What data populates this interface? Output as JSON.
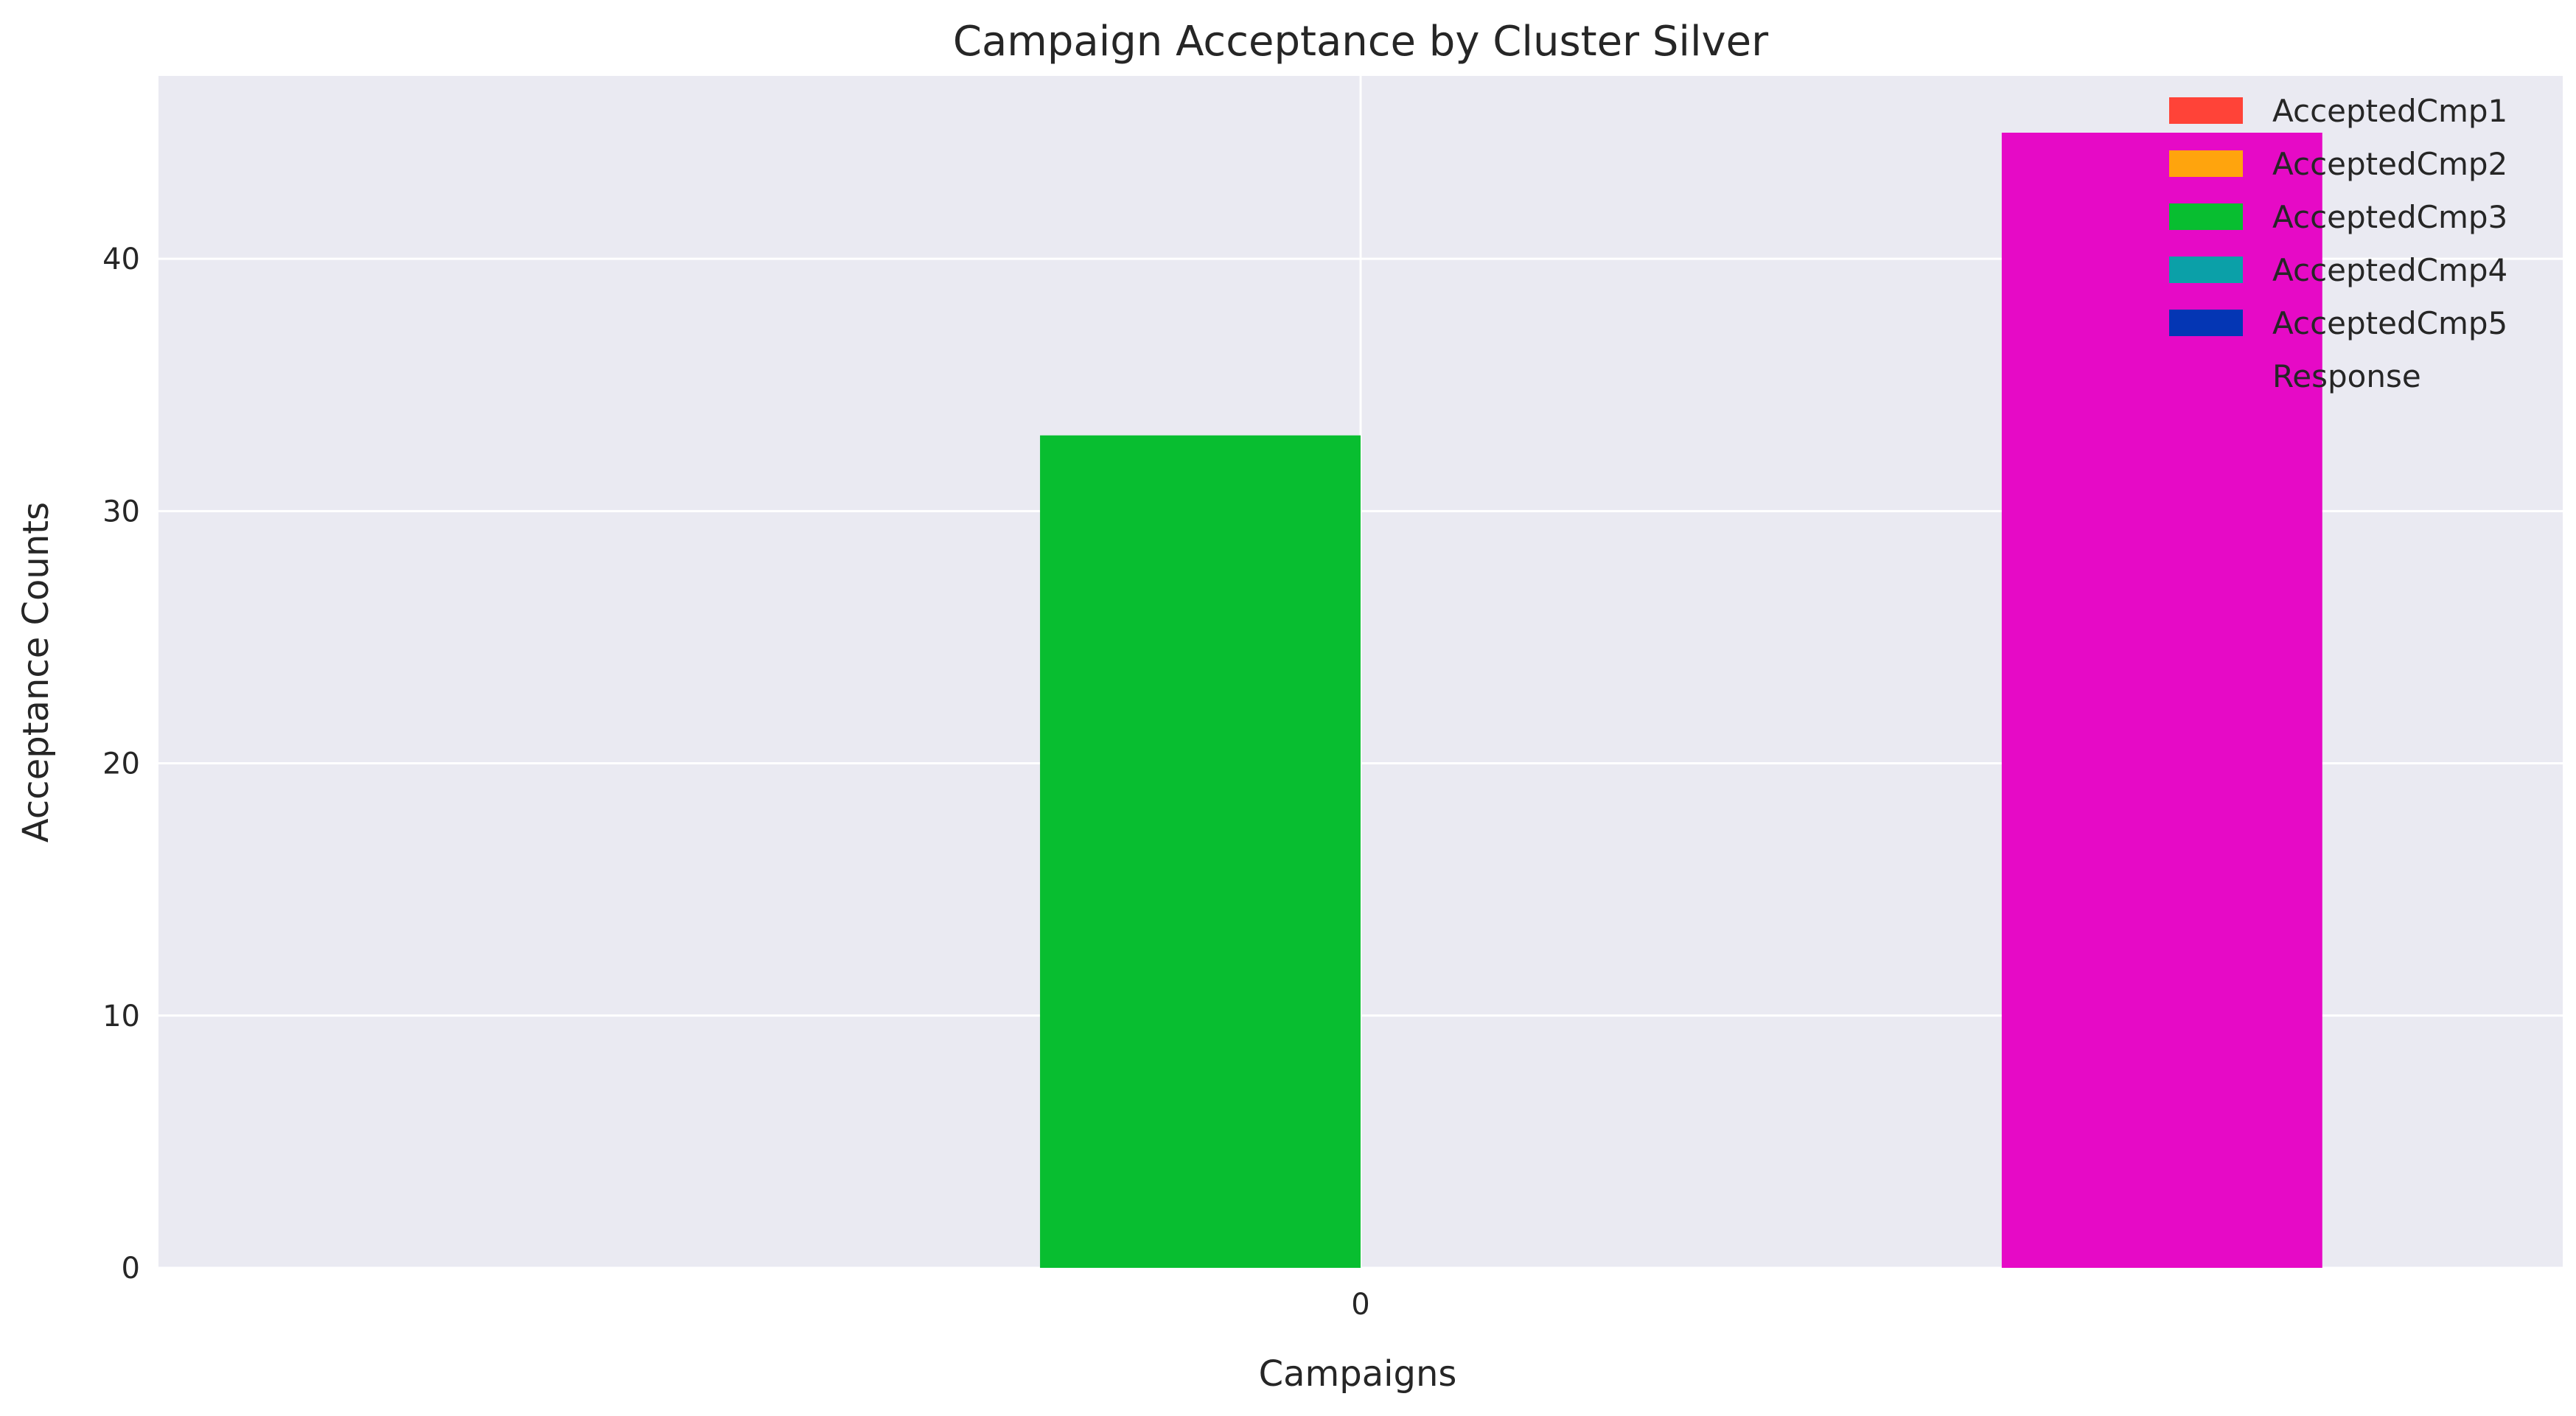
{
  "chart_data": {
    "type": "bar",
    "title": "Campaign Acceptance by Cluster Silver",
    "xlabel": "Campaigns",
    "ylabel": "Acceptance Counts",
    "categories": [
      "0"
    ],
    "ylim": [
      0,
      47.25
    ],
    "yticks": [
      0,
      10,
      20,
      30,
      40
    ],
    "grid": true,
    "legend_position": "top-right",
    "series": [
      {
        "name": "AcceptedCmp1",
        "values": [
          0
        ],
        "color": "#ff4338"
      },
      {
        "name": "AcceptedCmp2",
        "values": [
          0
        ],
        "color": "#ffa40d"
      },
      {
        "name": "AcceptedCmp3",
        "values": [
          33
        ],
        "color": "#08be30"
      },
      {
        "name": "AcceptedCmp4",
        "values": [
          0
        ],
        "color": "#0ba0a8"
      },
      {
        "name": "AcceptedCmp5",
        "values": [
          0
        ],
        "color": "#0436b4"
      },
      {
        "name": "Response",
        "values": [
          45
        ],
        "color": "#e60ac6"
      }
    ],
    "background_color": "#eaeaf2",
    "grid_color": "#ffffff"
  }
}
